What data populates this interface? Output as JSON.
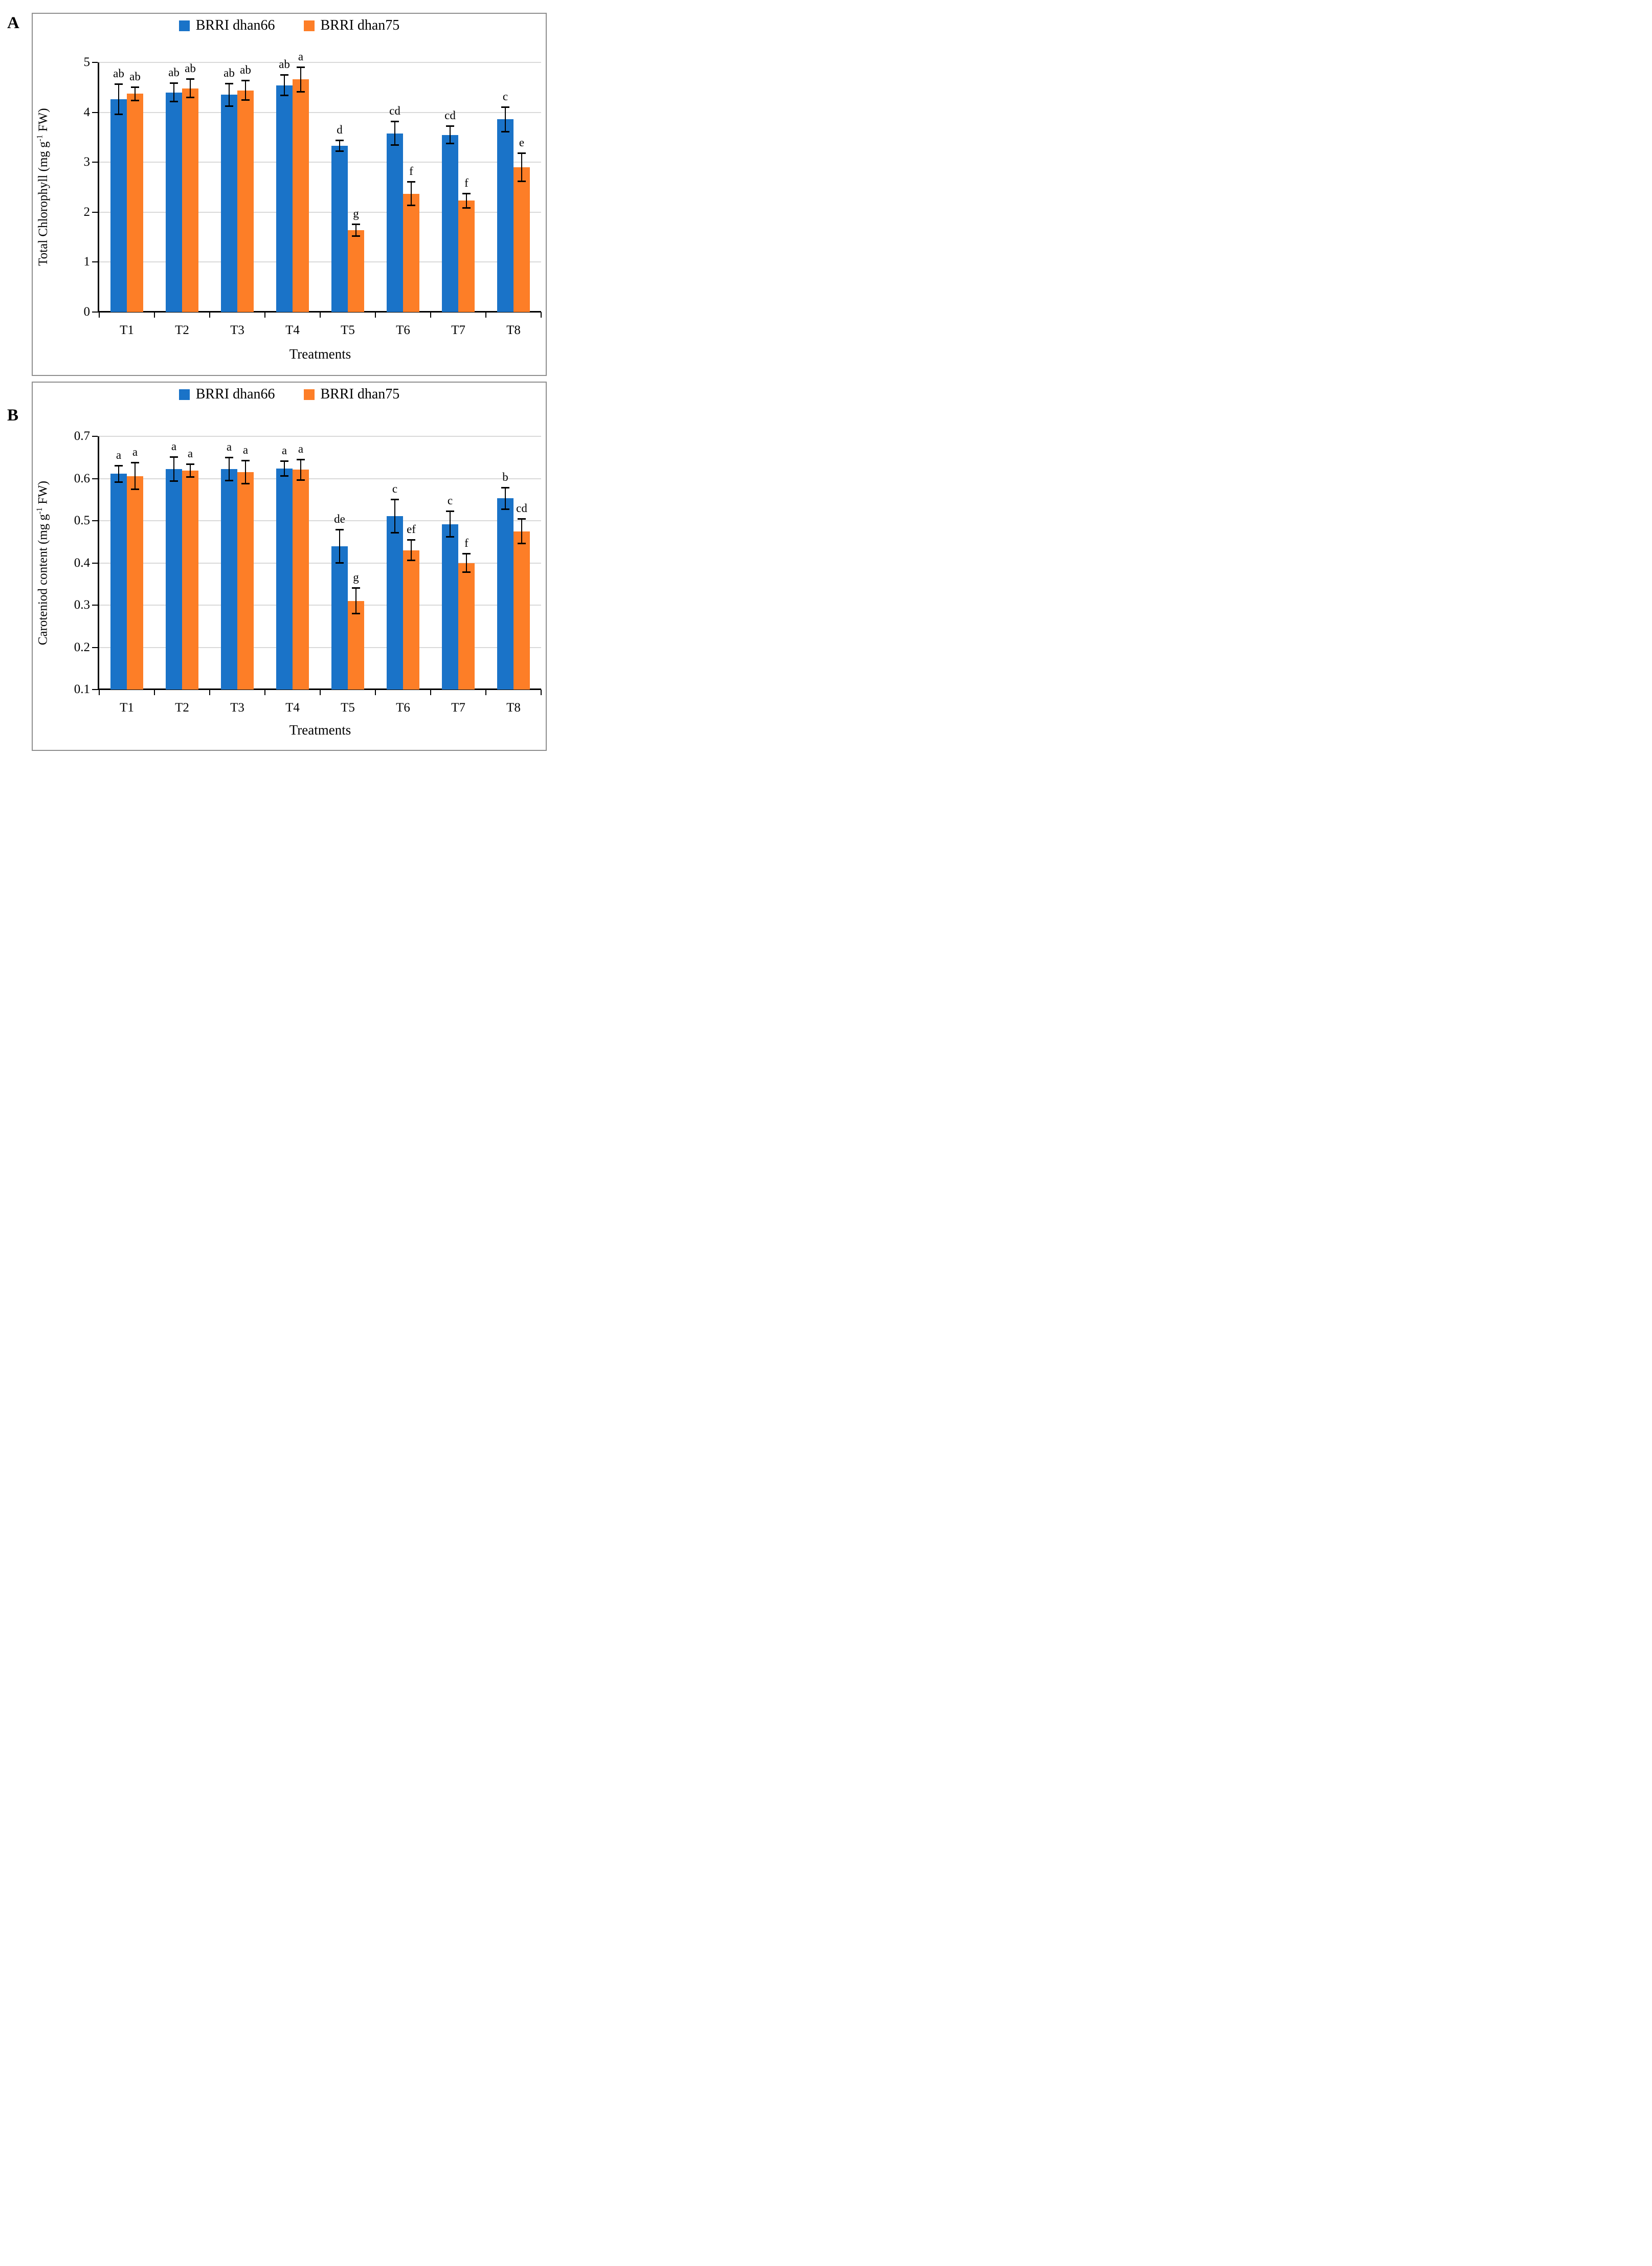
{
  "figure": {
    "background": "#ffffff",
    "panel_border_color": "#8e8e8e",
    "font_color": "#000000"
  },
  "chart_data": [
    {
      "panel_label": "A",
      "type": "bar",
      "categories": [
        "T1",
        "T2",
        "T3",
        "T4",
        "T5",
        "T6",
        "T7",
        "T8"
      ],
      "xlabel": "Treatments",
      "ylabel": "Total Chlorophyll (mg g-1 FW)",
      "ylabel_parts": {
        "pre": "Total Chlorophyll (mg g",
        "sup": "-1",
        "post": " FW)"
      },
      "ylim": [
        0,
        5
      ],
      "yticks": [
        "0",
        "1",
        "2",
        "3",
        "4",
        "5"
      ],
      "grid": true,
      "grid_color": "#D9D9D9",
      "axis_color": "#000000",
      "legend_position": "top",
      "error_bars": true,
      "series": [
        {
          "name": "BRRI dhan66",
          "color": "#1A73C8",
          "values": [
            4.26,
            4.4,
            4.35,
            4.54,
            3.33,
            3.58,
            3.55,
            3.86
          ],
          "errors": [
            0.31,
            0.19,
            0.23,
            0.21,
            0.11,
            0.24,
            0.18,
            0.25
          ],
          "sig_letters": [
            "ab",
            "ab",
            "ab",
            "ab",
            "d",
            "cd",
            "cd",
            "c"
          ]
        },
        {
          "name": "BRRI dhan75",
          "color": "#FD7E27",
          "values": [
            4.37,
            4.48,
            4.44,
            4.66,
            1.64,
            2.37,
            2.23,
            2.9
          ],
          "errors": [
            0.14,
            0.19,
            0.2,
            0.25,
            0.12,
            0.24,
            0.15,
            0.29
          ],
          "sig_letters": [
            "ab",
            "ab",
            "ab",
            "a",
            "g",
            "f",
            "f",
            "e"
          ]
        }
      ]
    },
    {
      "panel_label": "B",
      "type": "bar",
      "categories": [
        "T1",
        "T2",
        "T3",
        "T4",
        "T5",
        "T6",
        "T7",
        "T8"
      ],
      "xlabel": "Treatments",
      "ylabel": "Caroteniod content (mg g-1 FW)",
      "ylabel_parts": {
        "pre": "Caroteniod content (mg g",
        "sup": "-1",
        "post": " FW)"
      },
      "ylim": [
        0.1,
        0.7
      ],
      "yticks": [
        "0.1",
        "0.2",
        "0.3",
        "0.4",
        "0.5",
        "0.6",
        "0.7"
      ],
      "grid": true,
      "grid_color": "#D9D9D9",
      "axis_color": "#000000",
      "legend_position": "top",
      "error_bars": true,
      "series": [
        {
          "name": "BRRI dhan66",
          "color": "#1A73C8",
          "values": [
            0.611,
            0.622,
            0.622,
            0.624,
            0.44,
            0.511,
            0.492,
            0.553
          ],
          "errors": [
            0.02,
            0.029,
            0.028,
            0.018,
            0.04,
            0.04,
            0.031,
            0.026
          ],
          "sig_letters": [
            "a",
            "a",
            "a",
            "a",
            "de",
            "c",
            "c",
            "b"
          ]
        },
        {
          "name": "BRRI dhan75",
          "color": "#FD7E27",
          "values": [
            0.606,
            0.619,
            0.615,
            0.621,
            0.31,
            0.43,
            0.4,
            0.475
          ],
          "errors": [
            0.032,
            0.016,
            0.028,
            0.025,
            0.031,
            0.025,
            0.022,
            0.03
          ],
          "sig_letters": [
            "a",
            "a",
            "a",
            "a",
            "g",
            "ef",
            "f",
            "cd"
          ]
        }
      ]
    }
  ]
}
